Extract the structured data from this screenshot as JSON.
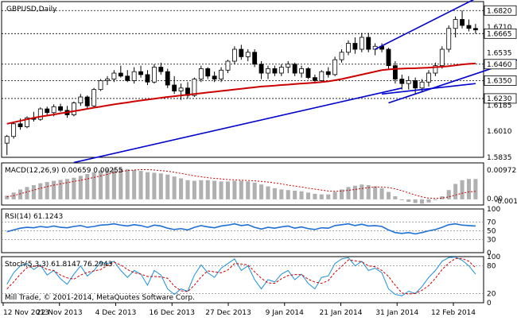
{
  "symbol_label": "GBPUSD,Daily",
  "copyright": "Mill Trade, © 2001-2014, MetaQuotes Software Corp.",
  "colors": {
    "bull": "#ffffff",
    "bear": "#000000",
    "ma_slow": "#cc0000",
    "trend": "#0000cc",
    "macd_hist": "#b0b0b0",
    "macd_signal": "#cc0000",
    "rsi": "#1e6fd6",
    "stoch_main": "#1e90d6",
    "stoch_signal": "#cc0000",
    "level_line": "#000000",
    "grid": "#c8c8c8"
  },
  "x_axis": {
    "labels": [
      "12 Nov 2013",
      "22 Nov 2013",
      "4 Dec 2013",
      "16 Dec 2013",
      "27 Dec 2013",
      "9 Jan 2014",
      "21 Jan 2014",
      "31 Jan 2014",
      "12 Feb 2014"
    ]
  },
  "chart_data": [
    {
      "type": "candlestick",
      "title": "GBPUSD,Daily",
      "y_ticks": [
        1.682,
        1.671,
        1.6665,
        1.6535,
        1.646,
        1.635,
        1.623,
        1.6185,
        1.601,
        1.5835
      ],
      "highlighted_levels": [
        1.682,
        1.6665,
        1.646,
        1.635,
        1.623
      ],
      "ylim": [
        1.5835,
        1.688
      ],
      "ohlc": [
        [
          1.593,
          1.5985,
          1.585,
          1.5975
        ],
        [
          1.5975,
          1.6075,
          1.596,
          1.606
        ],
        [
          1.606,
          1.6095,
          1.602,
          1.604
        ],
        [
          1.604,
          1.611,
          1.603,
          1.61
        ],
        [
          1.61,
          1.614,
          1.6075,
          1.609
        ],
        [
          1.609,
          1.617,
          1.608,
          1.616
        ],
        [
          1.616,
          1.6175,
          1.612,
          1.6135
        ],
        [
          1.6135,
          1.619,
          1.611,
          1.6175
        ],
        [
          1.6175,
          1.6195,
          1.614,
          1.615
        ],
        [
          1.615,
          1.618,
          1.61,
          1.612
        ],
        [
          1.612,
          1.621,
          1.611,
          1.62
        ],
        [
          1.62,
          1.626,
          1.618,
          1.624
        ],
        [
          1.624,
          1.625,
          1.616,
          1.618
        ],
        [
          1.618,
          1.63,
          1.617,
          1.629
        ],
        [
          1.629,
          1.636,
          1.628,
          1.635
        ],
        [
          1.635,
          1.638,
          1.632,
          1.636
        ],
        [
          1.636,
          1.642,
          1.634,
          1.64
        ],
        [
          1.64,
          1.645,
          1.637,
          1.638
        ],
        [
          1.638,
          1.642,
          1.634,
          1.635
        ],
        [
          1.635,
          1.644,
          1.633,
          1.641
        ],
        [
          1.641,
          1.645,
          1.637,
          1.639
        ],
        [
          1.639,
          1.642,
          1.632,
          1.634
        ],
        [
          1.634,
          1.646,
          1.633,
          1.644
        ],
        [
          1.644,
          1.647,
          1.639,
          1.641
        ],
        [
          1.641,
          1.643,
          1.63,
          1.632
        ],
        [
          1.632,
          1.638,
          1.626,
          1.628
        ],
        [
          1.628,
          1.633,
          1.622,
          1.63
        ],
        [
          1.63,
          1.634,
          1.623,
          1.625
        ],
        [
          1.625,
          1.637,
          1.624,
          1.636
        ],
        [
          1.636,
          1.645,
          1.634,
          1.643
        ],
        [
          1.643,
          1.644,
          1.636,
          1.638
        ],
        [
          1.638,
          1.641,
          1.634,
          1.636
        ],
        [
          1.636,
          1.644,
          1.634,
          1.642
        ],
        [
          1.642,
          1.649,
          1.64,
          1.648
        ],
        [
          1.648,
          1.658,
          1.646,
          1.656
        ],
        [
          1.656,
          1.659,
          1.649,
          1.651
        ],
        [
          1.651,
          1.656,
          1.648,
          1.654
        ],
        [
          1.654,
          1.656,
          1.644,
          1.646
        ],
        [
          1.646,
          1.648,
          1.636,
          1.64
        ],
        [
          1.64,
          1.645,
          1.636,
          1.643
        ],
        [
          1.643,
          1.645,
          1.638,
          1.64
        ],
        [
          1.64,
          1.646,
          1.638,
          1.644
        ],
        [
          1.644,
          1.648,
          1.64,
          1.646
        ],
        [
          1.646,
          1.647,
          1.638,
          1.64
        ],
        [
          1.64,
          1.645,
          1.637,
          1.643
        ],
        [
          1.643,
          1.644,
          1.636,
          1.637
        ],
        [
          1.637,
          1.639,
          1.633,
          1.635
        ],
        [
          1.635,
          1.642,
          1.634,
          1.641
        ],
        [
          1.641,
          1.644,
          1.637,
          1.639
        ],
        [
          1.639,
          1.651,
          1.638,
          1.649
        ],
        [
          1.649,
          1.656,
          1.647,
          1.654
        ],
        [
          1.654,
          1.662,
          1.652,
          1.66
        ],
        [
          1.66,
          1.664,
          1.653,
          1.656
        ],
        [
          1.656,
          1.667,
          1.654,
          1.664
        ],
        [
          1.664,
          1.667,
          1.654,
          1.656
        ],
        [
          1.656,
          1.66,
          1.652,
          1.658
        ],
        [
          1.658,
          1.66,
          1.654,
          1.656
        ],
        [
          1.656,
          1.657,
          1.643,
          1.645
        ],
        [
          1.645,
          1.648,
          1.633,
          1.636
        ],
        [
          1.636,
          1.639,
          1.629,
          1.633
        ],
        [
          1.633,
          1.638,
          1.629,
          1.635
        ],
        [
          1.635,
          1.637,
          1.626,
          1.63
        ],
        [
          1.63,
          1.636,
          1.627,
          1.634
        ],
        [
          1.634,
          1.642,
          1.631,
          1.64
        ],
        [
          1.64,
          1.647,
          1.638,
          1.645
        ],
        [
          1.645,
          1.658,
          1.643,
          1.656
        ],
        [
          1.656,
          1.672,
          1.654,
          1.67
        ],
        [
          1.67,
          1.678,
          1.664,
          1.676
        ],
        [
          1.676,
          1.682,
          1.67,
          1.672
        ],
        [
          1.672,
          1.676,
          1.668,
          1.67
        ],
        [
          1.67,
          1.673,
          1.6665,
          1.669
        ]
      ],
      "overlays": [
        {
          "kind": "moving-average",
          "values_start_index": 0,
          "values": [
            1.606,
            1.607,
            1.608,
            1.609,
            1.61,
            1.6108,
            1.6115,
            1.6122,
            1.613,
            1.6137,
            1.6145,
            1.6152,
            1.616,
            1.6168,
            1.6175,
            1.6183,
            1.619,
            1.6197,
            1.6203,
            1.621,
            1.6216,
            1.6222,
            1.6228,
            1.6234,
            1.624,
            1.6245,
            1.625,
            1.6255,
            1.626,
            1.6265,
            1.627,
            1.6275,
            1.628,
            1.6285,
            1.629,
            1.6295,
            1.63,
            1.6305,
            1.631,
            1.6313,
            1.6316,
            1.632,
            1.6323,
            1.6327,
            1.633,
            1.6333,
            1.6336,
            1.634,
            1.6345,
            1.6352,
            1.636,
            1.637,
            1.638,
            1.639,
            1.64,
            1.641,
            1.642,
            1.6425,
            1.6428,
            1.643,
            1.6432,
            1.6433,
            1.6435,
            1.6437,
            1.644,
            1.6443,
            1.6447,
            1.6452,
            1.6458,
            1.6462,
            1.6465
          ]
        },
        {
          "kind": "trend-line",
          "from": [
            10,
            1.58
          ],
          "to": [
            59,
            1.63
          ]
        },
        {
          "kind": "trend-line",
          "from": [
            57,
            1.62
          ],
          "to": [
            79,
            1.653
          ]
        },
        {
          "kind": "trend-line",
          "from": [
            55,
            1.656
          ],
          "to": [
            70,
            1.69
          ]
        },
        {
          "kind": "trend-line",
          "from": [
            56,
            1.626
          ],
          "to": [
            70,
            1.633
          ]
        }
      ]
    },
    {
      "type": "bar",
      "title": "MACD(12,26,9) 0.00659 0.00255",
      "y_ticks": [
        0.00972,
        0.0,
        -0.00183
      ],
      "ylim": [
        -0.00183,
        0.0118
      ],
      "histogram": [
        0.0012,
        0.0022,
        0.0032,
        0.004,
        0.0046,
        0.0052,
        0.0056,
        0.006,
        0.0063,
        0.0066,
        0.007,
        0.0076,
        0.0082,
        0.0088,
        0.0094,
        0.0098,
        0.01,
        0.01,
        0.0098,
        0.0095,
        0.0092,
        0.0088,
        0.0086,
        0.0084,
        0.008,
        0.0074,
        0.0068,
        0.0062,
        0.006,
        0.0062,
        0.0062,
        0.006,
        0.0058,
        0.0058,
        0.006,
        0.006,
        0.0058,
        0.0054,
        0.0048,
        0.0042,
        0.0036,
        0.0032,
        0.003,
        0.0028,
        0.0026,
        0.0022,
        0.0018,
        0.0016,
        0.0016,
        0.0024,
        0.0032,
        0.004,
        0.0044,
        0.0048,
        0.0046,
        0.0042,
        0.0036,
        0.0024,
        0.001,
        -0.0002,
        -0.0008,
        -0.0012,
        -0.0014,
        -0.001,
        -0.0002,
        0.001,
        0.003,
        0.005,
        0.0062,
        0.0066,
        0.0066
      ],
      "signal": [
        0.0008,
        0.0012,
        0.0018,
        0.0024,
        0.003,
        0.0036,
        0.0041,
        0.0046,
        0.005,
        0.0054,
        0.0058,
        0.0062,
        0.0066,
        0.0071,
        0.0076,
        0.0081,
        0.0086,
        0.009,
        0.0093,
        0.0095,
        0.0096,
        0.0096,
        0.0095,
        0.0093,
        0.0091,
        0.0088,
        0.0084,
        0.008,
        0.0076,
        0.0073,
        0.007,
        0.0068,
        0.0066,
        0.0064,
        0.0063,
        0.0062,
        0.0061,
        0.006,
        0.0058,
        0.0056,
        0.0053,
        0.005,
        0.0046,
        0.0043,
        0.004,
        0.0036,
        0.0033,
        0.003,
        0.0027,
        0.0026,
        0.0027,
        0.0029,
        0.0032,
        0.0035,
        0.0038,
        0.004,
        0.004,
        0.0038,
        0.0034,
        0.0028,
        0.0021,
        0.0014,
        0.0008,
        0.0004,
        0.0003,
        0.0004,
        0.0008,
        0.0014,
        0.002,
        0.0024,
        0.0026
      ]
    },
    {
      "type": "line",
      "title": "RSI(14) 61.1243",
      "y_ticks": [
        100,
        70,
        50,
        30,
        0
      ],
      "levels": [
        70,
        50,
        30
      ],
      "ylim": [
        0,
        100
      ],
      "values": [
        48,
        52,
        56,
        58,
        57,
        60,
        58,
        61,
        58,
        57,
        60,
        62,
        58,
        60,
        63,
        64,
        66,
        63,
        61,
        64,
        62,
        58,
        63,
        61,
        56,
        53,
        55,
        52,
        58,
        62,
        59,
        57,
        61,
        63,
        66,
        62,
        64,
        58,
        54,
        58,
        56,
        59,
        61,
        56,
        59,
        55,
        53,
        57,
        56,
        62,
        64,
        66,
        62,
        65,
        61,
        62,
        60,
        52,
        46,
        44,
        46,
        43,
        46,
        50,
        53,
        58,
        64,
        66,
        63,
        62,
        61
      ]
    },
    {
      "type": "line",
      "title": "Stoch(5,3,3) 61.8147 76.2943",
      "y_ticks": [
        100,
        80,
        20,
        0
      ],
      "levels": [
        80,
        20
      ],
      "ylim": [
        0,
        100
      ],
      "main": [
        40,
        65,
        80,
        85,
        72,
        82,
        60,
        70,
        52,
        40,
        62,
        80,
        58,
        70,
        88,
        85,
        90,
        70,
        55,
        70,
        62,
        38,
        70,
        60,
        30,
        18,
        30,
        25,
        60,
        82,
        65,
        55,
        75,
        85,
        95,
        70,
        80,
        50,
        30,
        50,
        45,
        62,
        70,
        50,
        62,
        42,
        30,
        55,
        58,
        85,
        95,
        98,
        80,
        90,
        70,
        75,
        65,
        30,
        18,
        15,
        25,
        20,
        35,
        55,
        70,
        90,
        98,
        99,
        92,
        80,
        62
      ],
      "signal": [
        30,
        45,
        62,
        76,
        79,
        80,
        72,
        70,
        60,
        54,
        51,
        60,
        66,
        69,
        72,
        81,
        88,
        82,
        72,
        65,
        62,
        57,
        57,
        56,
        53,
        36,
        26,
        24,
        38,
        56,
        69,
        67,
        65,
        71,
        85,
        84,
        82,
        67,
        53,
        43,
        42,
        52,
        59,
        61,
        61,
        51,
        45,
        42,
        48,
        66,
        79,
        93,
        91,
        89,
        80,
        78,
        70,
        57,
        38,
        21,
        19,
        20,
        27,
        37,
        53,
        72,
        86,
        96,
        96,
        90,
        76
      ]
    }
  ]
}
